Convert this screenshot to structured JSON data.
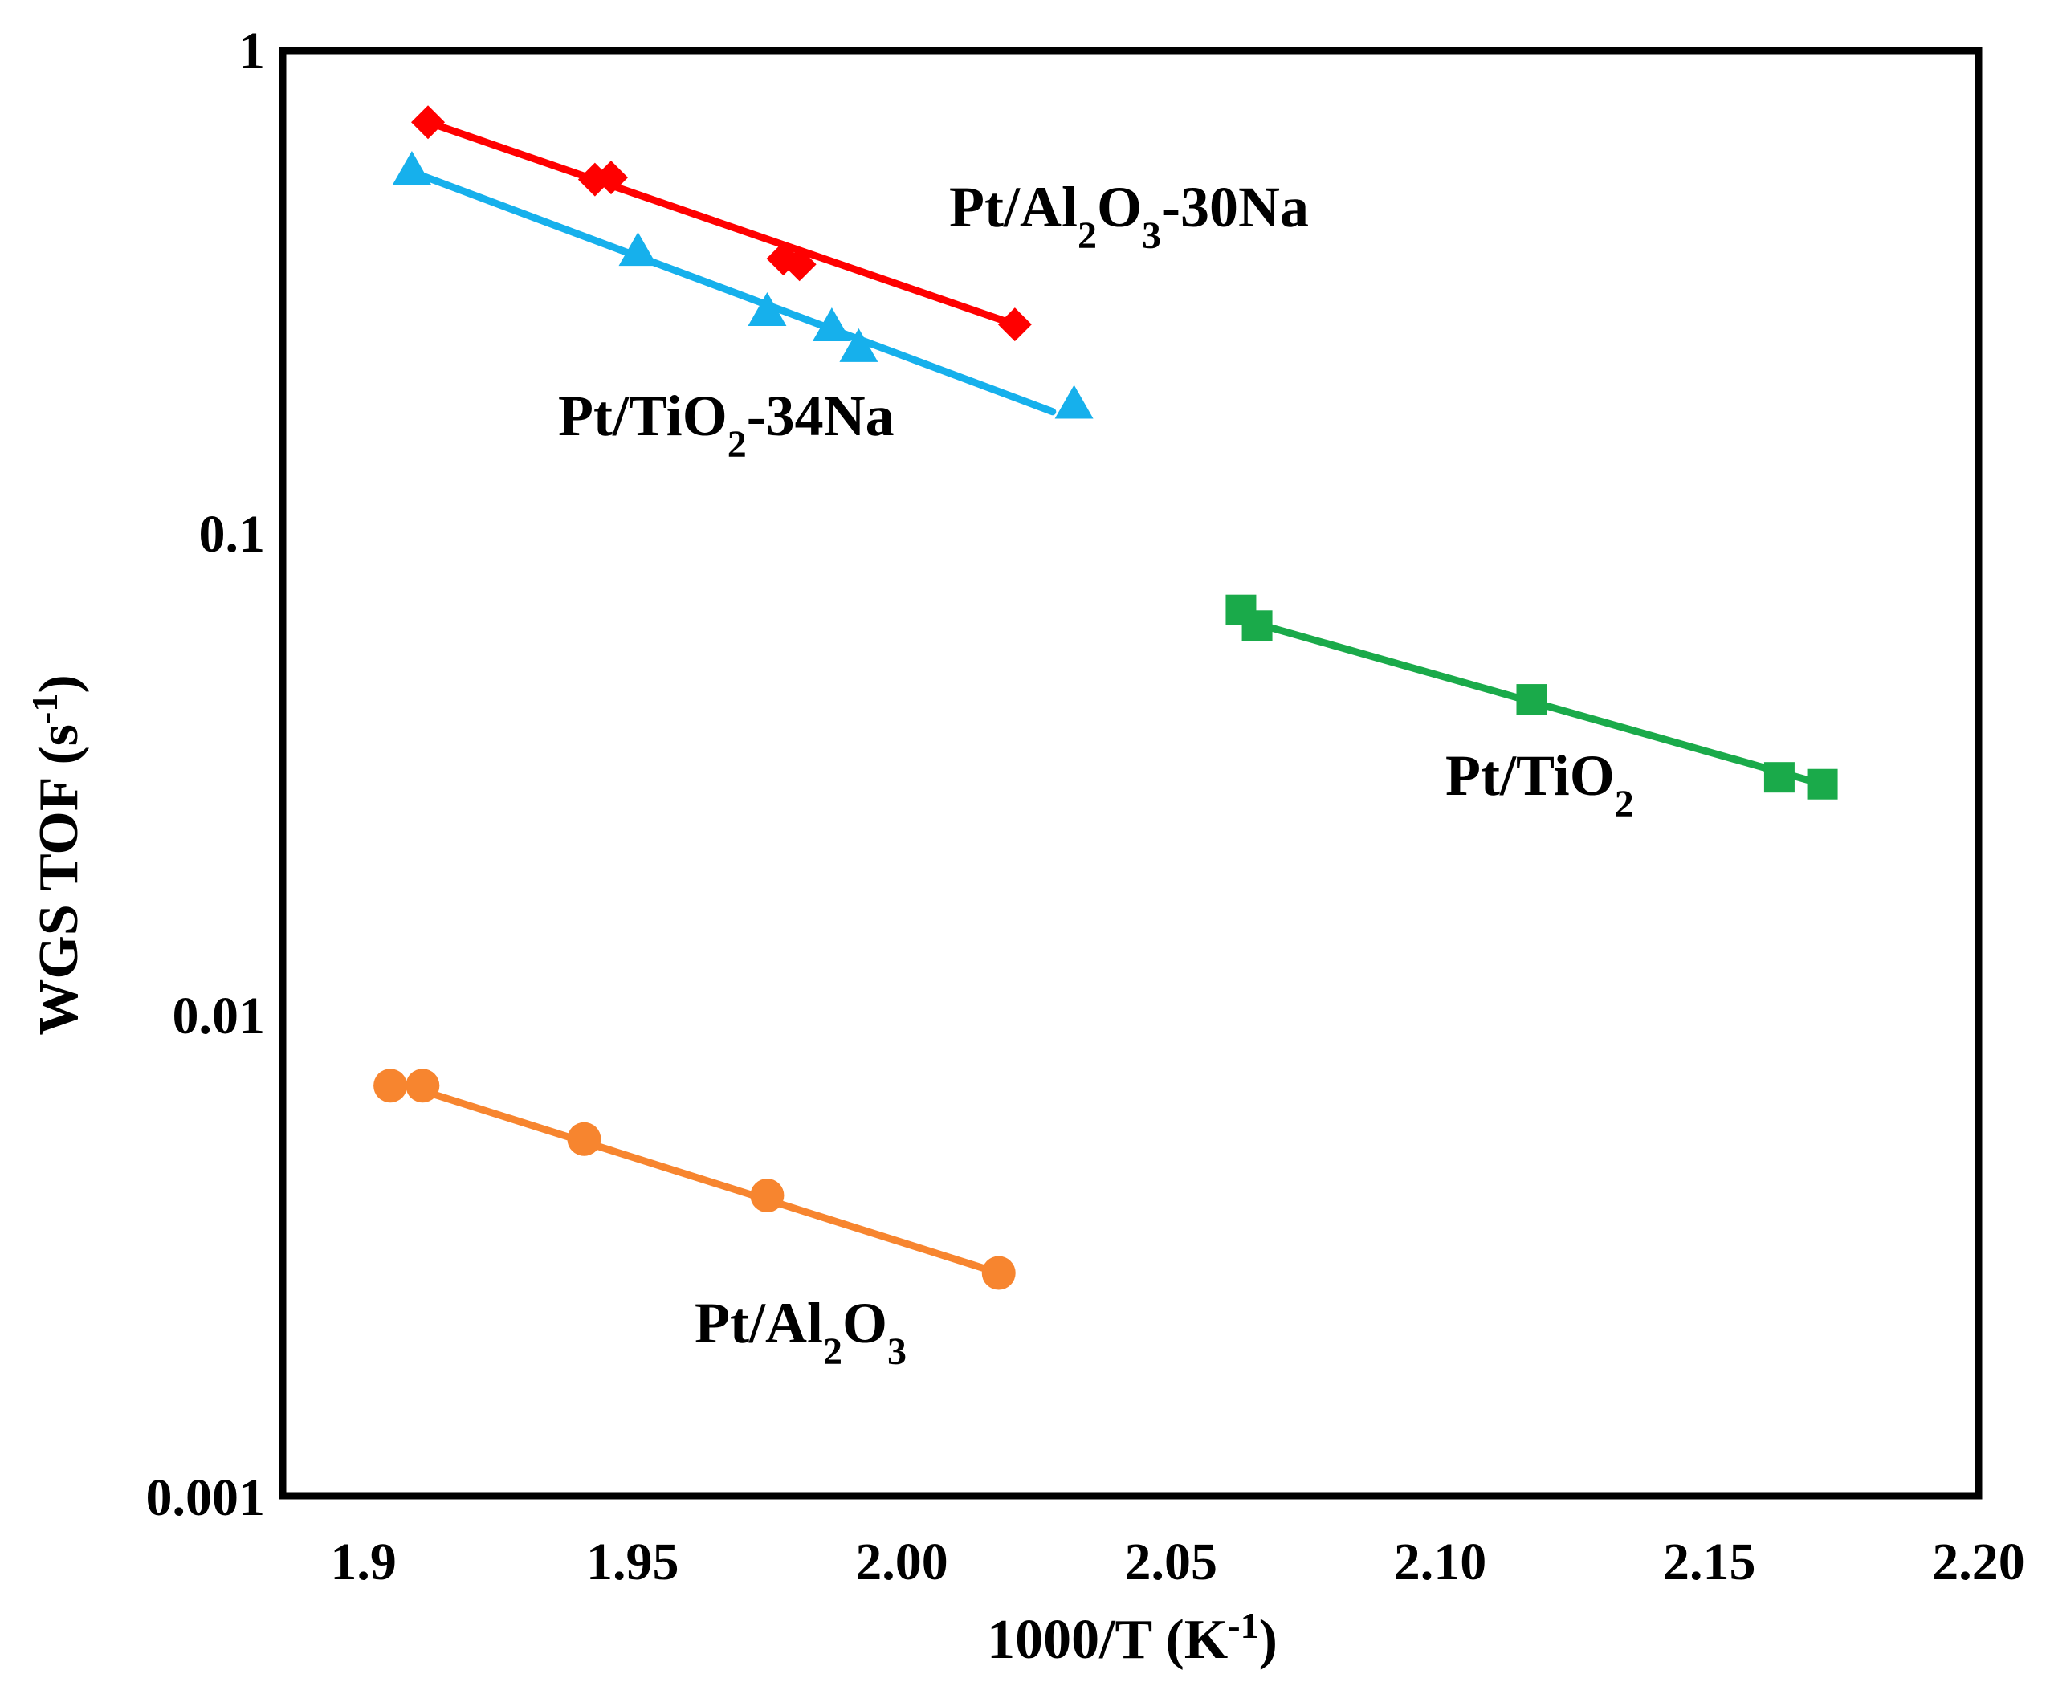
{
  "chart_data": {
    "type": "scatter",
    "title": "",
    "xlabel": "1000/T (K-1)",
    "ylabel": "WGS TOF (s-1)",
    "xlabel_parts": {
      "main": "1000/T (K",
      "sup": "-1",
      "end": ")"
    },
    "ylabel_parts": {
      "main": "WGS TOF (s",
      "sup": "-1",
      "end": ")"
    },
    "xlim": [
      1.885,
      2.2
    ],
    "ylim": [
      0.001,
      1
    ],
    "yscale": "log",
    "grid": false,
    "x_ticks": [
      1.9,
      1.95,
      2.0,
      2.05,
      2.1,
      2.15,
      2.2
    ],
    "x_tick_labels": [
      "1.9",
      "1.95",
      "2.00",
      "2.05",
      "2.10",
      "2.15",
      "2.20"
    ],
    "y_ticks": [
      1,
      0.1,
      0.01,
      0.001
    ],
    "y_tick_labels": [
      "1",
      "0.1",
      "0.01",
      "0.001"
    ],
    "series": [
      {
        "name": "Pt/Al2O3-30Na",
        "label_parts": [
          [
            "Pt/Al",
            ""
          ],
          [
            "2",
            "sub"
          ],
          [
            "O",
            ""
          ],
          [
            "3",
            "sub"
          ],
          [
            "-30Na",
            ""
          ]
        ],
        "color": "#ff0000",
        "marker": "diamond",
        "x": [
          1.912,
          1.943,
          1.946,
          1.978,
          1.981,
          2.021
        ],
        "y": [
          0.71,
          0.54,
          0.545,
          0.37,
          0.36,
          0.27
        ],
        "fit_x": [
          1.912,
          2.021
        ],
        "fit_y": [
          0.71,
          0.27
        ]
      },
      {
        "name": "Pt/TiO2-34Na",
        "label_parts": [
          [
            "Pt/TiO",
            ""
          ],
          [
            "2",
            "sub"
          ],
          [
            "-34Na",
            ""
          ]
        ],
        "color": "#16b0ec",
        "marker": "triangle",
        "x": [
          1.909,
          1.951,
          1.975,
          1.987,
          1.992,
          2.032
        ],
        "y": [
          0.56,
          0.38,
          0.285,
          0.265,
          0.24,
          0.183
        ],
        "fit_x": [
          1.909,
          2.028
        ],
        "fit_y": [
          0.56,
          0.178
        ]
      },
      {
        "name": "Pt/TiO2",
        "label_parts": [
          [
            "Pt/TiO",
            ""
          ],
          [
            "2",
            "sub"
          ]
        ],
        "color": "#1aaa4a",
        "marker": "square",
        "x": [
          2.063,
          2.066,
          2.117,
          2.163,
          2.171
        ],
        "y": [
          0.069,
          0.064,
          0.045,
          0.031,
          0.03
        ],
        "fit_x": [
          2.063,
          2.171
        ],
        "fit_y": [
          0.066,
          0.03
        ]
      },
      {
        "name": "Pt/Al2O3",
        "label_parts": [
          [
            "Pt/Al",
            ""
          ],
          [
            "2",
            "sub"
          ],
          [
            "O",
            ""
          ],
          [
            "3",
            "sub"
          ]
        ],
        "color": "#f7852f",
        "marker": "circle",
        "x": [
          1.905,
          1.911,
          1.941,
          1.975,
          2.018
        ],
        "y": [
          0.0071,
          0.0071,
          0.0055,
          0.0042,
          0.0029
        ],
        "fit_x": [
          1.908,
          2.018
        ],
        "fit_y": [
          0.0071,
          0.0029
        ]
      }
    ]
  }
}
